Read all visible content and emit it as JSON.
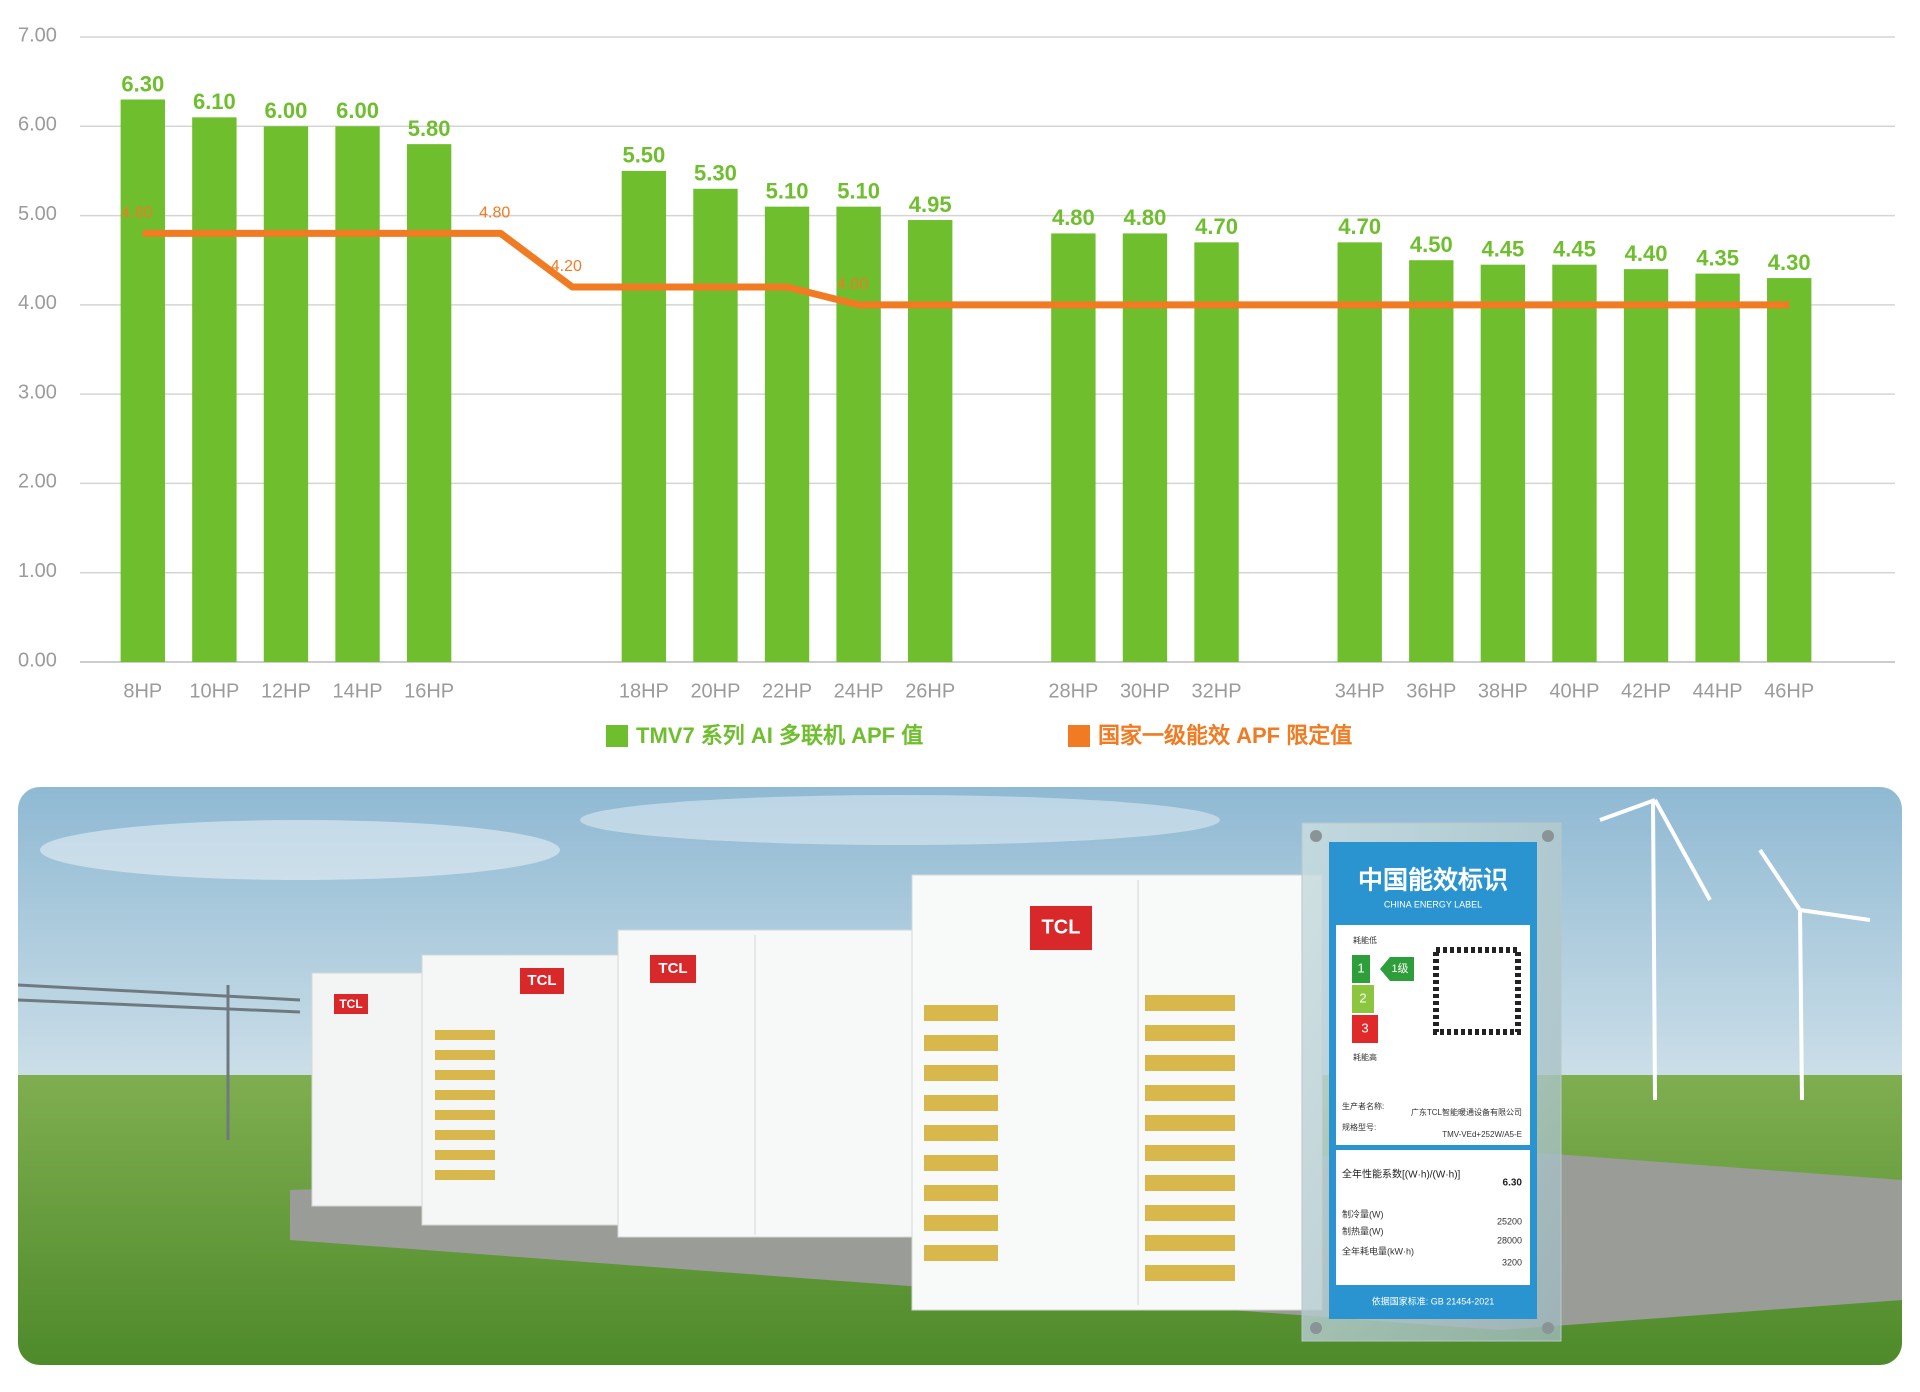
{
  "chart_data": {
    "type": "bar",
    "categories": [
      "8HP",
      "10HP",
      "12HP",
      "14HP",
      "16HP",
      null,
      null,
      "18HP",
      "20HP",
      "22HP",
      "24HP",
      "26HP",
      null,
      "28HP",
      "30HP",
      "32HP",
      null,
      "34HP",
      "36HP",
      "38HP",
      "40HP",
      "42HP",
      "44HP",
      "46HP"
    ],
    "series": [
      {
        "name": "TMV7 系列 AI 多联机 APF 值",
        "type": "bar",
        "color": "#6fbe2e",
        "values": [
          6.3,
          6.1,
          6.0,
          6.0,
          5.8,
          null,
          null,
          5.5,
          5.3,
          5.1,
          5.1,
          4.95,
          null,
          4.8,
          4.8,
          4.7,
          null,
          4.7,
          4.5,
          4.45,
          4.45,
          4.4,
          4.35,
          4.3
        ],
        "value_labels": [
          "6.30",
          "6.10",
          "6.00",
          "6.00",
          "5.80",
          null,
          null,
          "5.50",
          "5.30",
          "5.10",
          "5.10",
          "4.95",
          null,
          "4.80",
          "4.80",
          "4.70",
          null,
          "4.70",
          "4.50",
          "4.45",
          "4.45",
          "4.40",
          "4.35",
          "4.30"
        ]
      },
      {
        "name": "国家一级能效 APF 限定值",
        "type": "line",
        "color": "#f07b22",
        "values": [
          4.8,
          4.8,
          4.8,
          4.8,
          4.8,
          4.8,
          4.2,
          4.2,
          4.2,
          4.2,
          4.0,
          4.0,
          4.0,
          4.0,
          4.0,
          4.0,
          4.0,
          4.0,
          4.0,
          4.0,
          4.0,
          4.0,
          4.0,
          4.0
        ],
        "value_labels": [
          "4.80",
          null,
          null,
          null,
          null,
          "4.80",
          "4.20",
          null,
          null,
          null,
          "4.00",
          null,
          null,
          null,
          null,
          null,
          null,
          null,
          null,
          null,
          null,
          null,
          null,
          null
        ]
      }
    ],
    "ylim": [
      0,
      7
    ],
    "yticks": [
      {
        "value": 0,
        "label": "0.00"
      },
      {
        "value": 1,
        "label": "1.00"
      },
      {
        "value": 2,
        "label": "2.00"
      },
      {
        "value": 3,
        "label": "3.00"
      },
      {
        "value": 4,
        "label": "4.00"
      },
      {
        "value": 5,
        "label": "5.00"
      },
      {
        "value": 6,
        "label": "6.00"
      },
      {
        "value": 7,
        "label": "7.00"
      }
    ],
    "grid": true
  },
  "photo": {
    "brand": "TCL",
    "label": {
      "title": "中国能效标识",
      "subtitle": "CHINA   ENERGY   LABEL",
      "low": "耗能低",
      "high": "耗能高",
      "grade": "1级",
      "grades": [
        "1",
        "2",
        "3"
      ],
      "producer_key": "生产者名称:",
      "producer": "广东TCL智能暖通设备有限公司",
      "model_key": "规格型号:",
      "model": "TMV-VEd+252W/A5-E",
      "apf_key": "全年性能系数[(W·h)/(W·h)]",
      "apf": "6.30",
      "rows": [
        [
          "制冷量(W)",
          "25200"
        ],
        [
          "制热量(W)",
          "28000"
        ],
        [
          "全年耗电量(kW·h)",
          "3200"
        ]
      ],
      "standard": "依据国家标准: GB 21454-2021"
    }
  }
}
